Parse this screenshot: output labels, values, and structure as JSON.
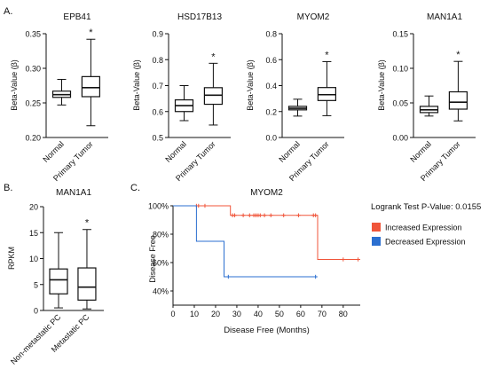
{
  "panel_labels": {
    "a": "A.",
    "b": "B.",
    "c": "C."
  },
  "chart_data": [
    {
      "type": "box",
      "title": "EPB41",
      "ylabel": "Beta-Value (β)",
      "ylim": [
        0.2,
        0.35
      ],
      "yticks": [
        "0.20",
        "0.25",
        "0.30",
        "0.35"
      ],
      "categories": [
        "Normal",
        "Primary Tumor"
      ],
      "boxes": [
        {
          "min": 0.247,
          "q1": 0.258,
          "median": 0.262,
          "q3": 0.267,
          "max": 0.284
        },
        {
          "min": 0.217,
          "q1": 0.259,
          "median": 0.272,
          "q3": 0.288,
          "max": 0.342
        }
      ],
      "annotation": "*"
    },
    {
      "type": "box",
      "title": "HSD17B13",
      "ylabel": "Beta-Value (β)",
      "ylim": [
        0.5,
        0.9
      ],
      "yticks": [
        "0.5",
        "0.6",
        "0.7",
        "0.8",
        "0.9"
      ],
      "categories": [
        "Normal",
        "Primary Tumor"
      ],
      "boxes": [
        {
          "min": 0.565,
          "q1": 0.6,
          "median": 0.623,
          "q3": 0.645,
          "max": 0.7
        },
        {
          "min": 0.548,
          "q1": 0.628,
          "median": 0.663,
          "q3": 0.692,
          "max": 0.786
        }
      ],
      "annotation": "*"
    },
    {
      "type": "box",
      "title": "MYOM2",
      "ylabel": "Beta-Value (β)",
      "ylim": [
        0.0,
        0.8
      ],
      "yticks": [
        "0.0",
        "0.2",
        "0.4",
        "0.6",
        "0.8"
      ],
      "categories": [
        "Normal",
        "Primary Tumor"
      ],
      "boxes": [
        {
          "min": 0.165,
          "q1": 0.213,
          "median": 0.225,
          "q3": 0.24,
          "max": 0.295
        },
        {
          "min": 0.168,
          "q1": 0.285,
          "median": 0.33,
          "q3": 0.385,
          "max": 0.585
        }
      ],
      "annotation": "*"
    },
    {
      "type": "box",
      "title": "MAN1A1",
      "ylabel": "Beta-Value (β)",
      "ylim": [
        0.0,
        0.15
      ],
      "yticks": [
        "0.00",
        "0.05",
        "0.10",
        "0.15"
      ],
      "categories": [
        "Normal",
        "Primary Tumor"
      ],
      "boxes": [
        {
          "min": 0.031,
          "q1": 0.036,
          "median": 0.04,
          "q3": 0.045,
          "max": 0.06
        },
        {
          "min": 0.024,
          "q1": 0.041,
          "median": 0.051,
          "q3": 0.066,
          "max": 0.11
        }
      ],
      "annotation": "*"
    },
    {
      "type": "box",
      "title": "MAN1A1",
      "ylabel": "RPKM",
      "ylim": [
        0,
        20
      ],
      "yticks": [
        "0",
        "5",
        "10",
        "15",
        "20"
      ],
      "categories": [
        "Non-metastatic PC",
        "Metastatic PC"
      ],
      "boxes": [
        {
          "min": 0.5,
          "q1": 3.2,
          "median": 5.9,
          "q3": 8.0,
          "max": 15.0
        },
        {
          "min": 0.3,
          "q1": 2.0,
          "median": 4.5,
          "q3": 8.2,
          "max": 15.6
        }
      ],
      "annotation": "*"
    },
    {
      "type": "line",
      "subtype": "kaplan-meier",
      "title": "MYOM2",
      "xlabel": "Disease Free (Months)",
      "ylabel": "Disease Free",
      "xlim": [
        0,
        88
      ],
      "ylim": [
        30,
        100
      ],
      "xticks": [
        0,
        10,
        20,
        30,
        40,
        50,
        60,
        70,
        80
      ],
      "yticks": [
        40,
        60,
        80,
        100
      ],
      "ytick_suffix": "%",
      "pvalue_text": "Logrank Test P-Value: 0.0155",
      "series": [
        {
          "name": "Increased Expression",
          "color": "#f0553a",
          "steps": [
            [
              0,
              100
            ],
            [
              27,
              100
            ],
            [
              27,
              93.3
            ],
            [
              68,
              93.3
            ],
            [
              68,
              62.2
            ],
            [
              88,
              62.2
            ]
          ],
          "censored": [
            [
              11,
              100
            ],
            [
              12,
              100
            ],
            [
              15,
              100
            ],
            [
              28,
              93.3
            ],
            [
              29,
              93.3
            ],
            [
              33,
              93.3
            ],
            [
              36,
              93.3
            ],
            [
              38,
              93.3
            ],
            [
              39,
              93.3
            ],
            [
              40,
              93.3
            ],
            [
              41,
              93.3
            ],
            [
              43,
              93.3
            ],
            [
              46,
              93.3
            ],
            [
              52,
              93.3
            ],
            [
              59,
              93.3
            ],
            [
              66,
              93.3
            ],
            [
              67,
              93.3
            ],
            [
              80,
              62.2
            ],
            [
              87,
              62.2
            ]
          ]
        },
        {
          "name": "Decreased Expression",
          "color": "#2b6fd0",
          "steps": [
            [
              0,
              100
            ],
            [
              11,
              100
            ],
            [
              11,
              75
            ],
            [
              24,
              75
            ],
            [
              24,
              50
            ],
            [
              67,
              50
            ]
          ],
          "censored": [
            [
              26,
              50
            ],
            [
              67,
              50
            ]
          ]
        }
      ]
    }
  ]
}
